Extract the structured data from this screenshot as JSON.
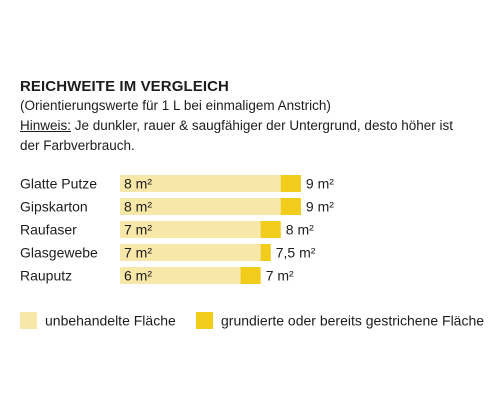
{
  "heading": {
    "title": "REICHWEITE IM VERGLEICH",
    "subtitle": "(Orientierungswerte für 1 L bei einmaligem Anstrich)",
    "note_label": "Hinweis:",
    "note_line1": " Je dunkler, rauer & saugfähiger der Untergrund, desto höher ist",
    "note_line2": "der Farbverbrauch."
  },
  "colors": {
    "untreated": "#f7e7a8",
    "primed": "#f1cc1b",
    "text": "#1d1d1b"
  },
  "chart_data": {
    "type": "bar",
    "orientation": "horizontal",
    "categories": [
      "Glatte Putze",
      "Gipskarton",
      "Raufaser",
      "Glasgewebe",
      "Rauputz"
    ],
    "series": [
      {
        "name": "unbehandelte Fläche",
        "values": [
          8,
          8,
          7,
          7,
          6
        ],
        "labels": [
          "8 m²",
          "8 m²",
          "7 m²",
          "7 m²",
          "6 m²"
        ]
      },
      {
        "name": "grundierte oder bereits gestrichene Fläche",
        "values": [
          9,
          9,
          8,
          7.5,
          7
        ],
        "labels": [
          "9 m²",
          "9 m²",
          "8 m²",
          "7,5 m²",
          "7 m²"
        ]
      }
    ],
    "stacked": "overlap",
    "legend_position": "bottom",
    "grid": false
  }
}
